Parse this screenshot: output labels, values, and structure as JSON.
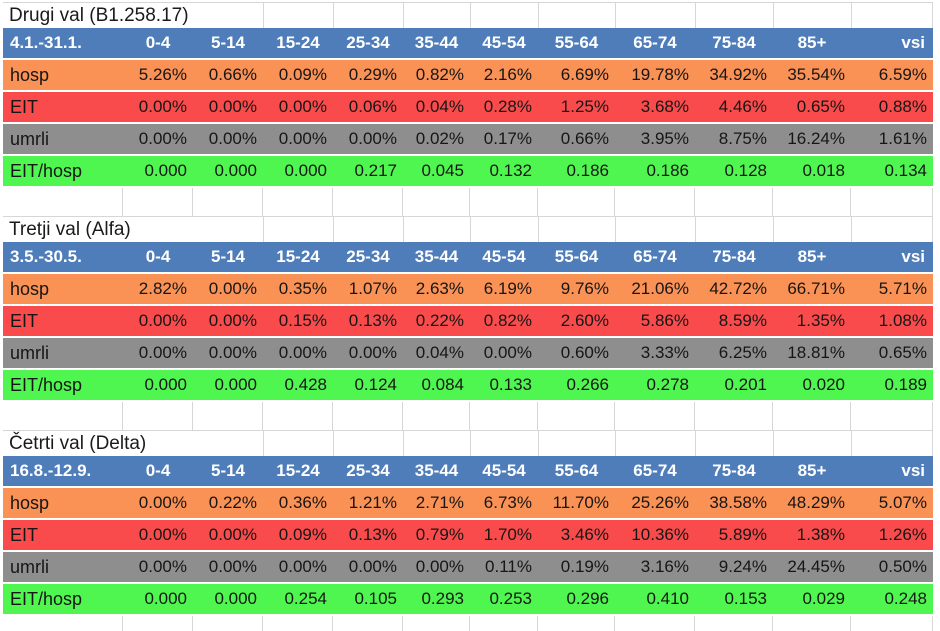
{
  "colors": {
    "header_bg": "#4e7dba",
    "hosp_bg": "#fa9155",
    "eit_bg": "#f94b4b",
    "umrli_bg": "#8e8e8e",
    "ratio_bg": "#50f650",
    "gridline": "#d6d6d6",
    "header_text": "#ffffff",
    "body_text": "#161616"
  },
  "chart_data": [
    {
      "type": "table",
      "title": "Drugi val (B1.258.17)",
      "period": "4.1.-31.1.",
      "columns": [
        "0-4",
        "5-14",
        "15-24",
        "25-34",
        "35-44",
        "45-54",
        "55-64",
        "65-74",
        "75-84",
        "85+",
        "vsi"
      ],
      "rows": [
        {
          "label": "hosp",
          "values": [
            "5.26%",
            "0.66%",
            "0.09%",
            "0.29%",
            "0.82%",
            "2.16%",
            "6.69%",
            "19.78%",
            "34.92%",
            "35.54%",
            "6.59%"
          ]
        },
        {
          "label": "EIT",
          "values": [
            "0.00%",
            "0.00%",
            "0.00%",
            "0.06%",
            "0.04%",
            "0.28%",
            "1.25%",
            "3.68%",
            "4.46%",
            "0.65%",
            "0.88%"
          ]
        },
        {
          "label": "umrli",
          "values": [
            "0.00%",
            "0.00%",
            "0.00%",
            "0.00%",
            "0.02%",
            "0.17%",
            "0.66%",
            "3.95%",
            "8.75%",
            "16.24%",
            "1.61%"
          ]
        },
        {
          "label": "EIT/hosp",
          "values": [
            "0.000",
            "0.000",
            "0.000",
            "0.217",
            "0.045",
            "0.132",
            "0.186",
            "0.186",
            "0.128",
            "0.018",
            "0.134"
          ]
        }
      ]
    },
    {
      "type": "table",
      "title": "Tretji val (Alfa)",
      "period": "3.5.-30.5.",
      "columns": [
        "0-4",
        "5-14",
        "15-24",
        "25-34",
        "35-44",
        "45-54",
        "55-64",
        "65-74",
        "75-84",
        "85+",
        "vsi"
      ],
      "rows": [
        {
          "label": "hosp",
          "values": [
            "2.82%",
            "0.00%",
            "0.35%",
            "1.07%",
            "2.63%",
            "6.19%",
            "9.76%",
            "21.06%",
            "42.72%",
            "66.71%",
            "5.71%"
          ]
        },
        {
          "label": "EIT",
          "values": [
            "0.00%",
            "0.00%",
            "0.15%",
            "0.13%",
            "0.22%",
            "0.82%",
            "2.60%",
            "5.86%",
            "8.59%",
            "1.35%",
            "1.08%"
          ]
        },
        {
          "label": "umrli",
          "values": [
            "0.00%",
            "0.00%",
            "0.00%",
            "0.00%",
            "0.04%",
            "0.00%",
            "0.60%",
            "3.33%",
            "6.25%",
            "18.81%",
            "0.65%"
          ]
        },
        {
          "label": "EIT/hosp",
          "values": [
            "0.000",
            "0.000",
            "0.428",
            "0.124",
            "0.084",
            "0.133",
            "0.266",
            "0.278",
            "0.201",
            "0.020",
            "0.189"
          ]
        }
      ]
    },
    {
      "type": "table",
      "title": "Četrti val (Delta)",
      "period": "16.8.-12.9.",
      "columns": [
        "0-4",
        "5-14",
        "15-24",
        "25-34",
        "35-44",
        "45-54",
        "55-64",
        "65-74",
        "75-84",
        "85+",
        "vsi"
      ],
      "rows": [
        {
          "label": "hosp",
          "values": [
            "0.00%",
            "0.22%",
            "0.36%",
            "1.21%",
            "2.71%",
            "6.73%",
            "11.70%",
            "25.26%",
            "38.58%",
            "48.29%",
            "5.07%"
          ]
        },
        {
          "label": "EIT",
          "values": [
            "0.00%",
            "0.00%",
            "0.09%",
            "0.13%",
            "0.79%",
            "1.70%",
            "3.46%",
            "10.36%",
            "5.89%",
            "1.38%",
            "1.26%"
          ]
        },
        {
          "label": "umrli",
          "values": [
            "0.00%",
            "0.00%",
            "0.00%",
            "0.00%",
            "0.00%",
            "0.11%",
            "0.19%",
            "3.16%",
            "9.24%",
            "24.45%",
            "0.50%"
          ]
        },
        {
          "label": "EIT/hosp",
          "values": [
            "0.000",
            "0.000",
            "0.254",
            "0.105",
            "0.293",
            "0.253",
            "0.296",
            "0.410",
            "0.153",
            "0.029",
            "0.248"
          ]
        }
      ]
    }
  ]
}
